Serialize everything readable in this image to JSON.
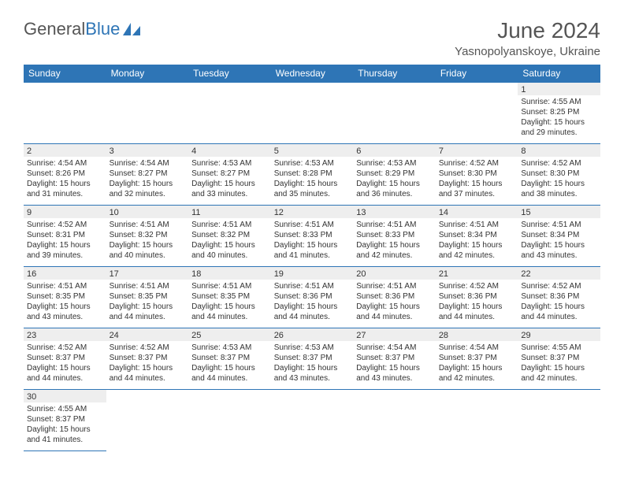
{
  "logo": {
    "text1": "General",
    "text2": "Blue"
  },
  "title": "June 2024",
  "subtitle": "Yasnopolyanskoye, Ukraine",
  "colors": {
    "header_bg": "#2e75b6",
    "header_text": "#ffffff",
    "daynum_bg": "#eeeeee",
    "border": "#2e75b6",
    "page_bg": "#ffffff",
    "body_text": "#333333",
    "title_text": "#555555"
  },
  "days_of_week": [
    "Sunday",
    "Monday",
    "Tuesday",
    "Wednesday",
    "Thursday",
    "Friday",
    "Saturday"
  ],
  "weeks": [
    [
      null,
      null,
      null,
      null,
      null,
      null,
      {
        "n": "1",
        "sr": "Sunrise: 4:55 AM",
        "ss": "Sunset: 8:25 PM",
        "dl1": "Daylight: 15 hours",
        "dl2": "and 29 minutes."
      }
    ],
    [
      {
        "n": "2",
        "sr": "Sunrise: 4:54 AM",
        "ss": "Sunset: 8:26 PM",
        "dl1": "Daylight: 15 hours",
        "dl2": "and 31 minutes."
      },
      {
        "n": "3",
        "sr": "Sunrise: 4:54 AM",
        "ss": "Sunset: 8:27 PM",
        "dl1": "Daylight: 15 hours",
        "dl2": "and 32 minutes."
      },
      {
        "n": "4",
        "sr": "Sunrise: 4:53 AM",
        "ss": "Sunset: 8:27 PM",
        "dl1": "Daylight: 15 hours",
        "dl2": "and 33 minutes."
      },
      {
        "n": "5",
        "sr": "Sunrise: 4:53 AM",
        "ss": "Sunset: 8:28 PM",
        "dl1": "Daylight: 15 hours",
        "dl2": "and 35 minutes."
      },
      {
        "n": "6",
        "sr": "Sunrise: 4:53 AM",
        "ss": "Sunset: 8:29 PM",
        "dl1": "Daylight: 15 hours",
        "dl2": "and 36 minutes."
      },
      {
        "n": "7",
        "sr": "Sunrise: 4:52 AM",
        "ss": "Sunset: 8:30 PM",
        "dl1": "Daylight: 15 hours",
        "dl2": "and 37 minutes."
      },
      {
        "n": "8",
        "sr": "Sunrise: 4:52 AM",
        "ss": "Sunset: 8:30 PM",
        "dl1": "Daylight: 15 hours",
        "dl2": "and 38 minutes."
      }
    ],
    [
      {
        "n": "9",
        "sr": "Sunrise: 4:52 AM",
        "ss": "Sunset: 8:31 PM",
        "dl1": "Daylight: 15 hours",
        "dl2": "and 39 minutes."
      },
      {
        "n": "10",
        "sr": "Sunrise: 4:51 AM",
        "ss": "Sunset: 8:32 PM",
        "dl1": "Daylight: 15 hours",
        "dl2": "and 40 minutes."
      },
      {
        "n": "11",
        "sr": "Sunrise: 4:51 AM",
        "ss": "Sunset: 8:32 PM",
        "dl1": "Daylight: 15 hours",
        "dl2": "and 40 minutes."
      },
      {
        "n": "12",
        "sr": "Sunrise: 4:51 AM",
        "ss": "Sunset: 8:33 PM",
        "dl1": "Daylight: 15 hours",
        "dl2": "and 41 minutes."
      },
      {
        "n": "13",
        "sr": "Sunrise: 4:51 AM",
        "ss": "Sunset: 8:33 PM",
        "dl1": "Daylight: 15 hours",
        "dl2": "and 42 minutes."
      },
      {
        "n": "14",
        "sr": "Sunrise: 4:51 AM",
        "ss": "Sunset: 8:34 PM",
        "dl1": "Daylight: 15 hours",
        "dl2": "and 42 minutes."
      },
      {
        "n": "15",
        "sr": "Sunrise: 4:51 AM",
        "ss": "Sunset: 8:34 PM",
        "dl1": "Daylight: 15 hours",
        "dl2": "and 43 minutes."
      }
    ],
    [
      {
        "n": "16",
        "sr": "Sunrise: 4:51 AM",
        "ss": "Sunset: 8:35 PM",
        "dl1": "Daylight: 15 hours",
        "dl2": "and 43 minutes."
      },
      {
        "n": "17",
        "sr": "Sunrise: 4:51 AM",
        "ss": "Sunset: 8:35 PM",
        "dl1": "Daylight: 15 hours",
        "dl2": "and 44 minutes."
      },
      {
        "n": "18",
        "sr": "Sunrise: 4:51 AM",
        "ss": "Sunset: 8:35 PM",
        "dl1": "Daylight: 15 hours",
        "dl2": "and 44 minutes."
      },
      {
        "n": "19",
        "sr": "Sunrise: 4:51 AM",
        "ss": "Sunset: 8:36 PM",
        "dl1": "Daylight: 15 hours",
        "dl2": "and 44 minutes."
      },
      {
        "n": "20",
        "sr": "Sunrise: 4:51 AM",
        "ss": "Sunset: 8:36 PM",
        "dl1": "Daylight: 15 hours",
        "dl2": "and 44 minutes."
      },
      {
        "n": "21",
        "sr": "Sunrise: 4:52 AM",
        "ss": "Sunset: 8:36 PM",
        "dl1": "Daylight: 15 hours",
        "dl2": "and 44 minutes."
      },
      {
        "n": "22",
        "sr": "Sunrise: 4:52 AM",
        "ss": "Sunset: 8:36 PM",
        "dl1": "Daylight: 15 hours",
        "dl2": "and 44 minutes."
      }
    ],
    [
      {
        "n": "23",
        "sr": "Sunrise: 4:52 AM",
        "ss": "Sunset: 8:37 PM",
        "dl1": "Daylight: 15 hours",
        "dl2": "and 44 minutes."
      },
      {
        "n": "24",
        "sr": "Sunrise: 4:52 AM",
        "ss": "Sunset: 8:37 PM",
        "dl1": "Daylight: 15 hours",
        "dl2": "and 44 minutes."
      },
      {
        "n": "25",
        "sr": "Sunrise: 4:53 AM",
        "ss": "Sunset: 8:37 PM",
        "dl1": "Daylight: 15 hours",
        "dl2": "and 44 minutes."
      },
      {
        "n": "26",
        "sr": "Sunrise: 4:53 AM",
        "ss": "Sunset: 8:37 PM",
        "dl1": "Daylight: 15 hours",
        "dl2": "and 43 minutes."
      },
      {
        "n": "27",
        "sr": "Sunrise: 4:54 AM",
        "ss": "Sunset: 8:37 PM",
        "dl1": "Daylight: 15 hours",
        "dl2": "and 43 minutes."
      },
      {
        "n": "28",
        "sr": "Sunrise: 4:54 AM",
        "ss": "Sunset: 8:37 PM",
        "dl1": "Daylight: 15 hours",
        "dl2": "and 42 minutes."
      },
      {
        "n": "29",
        "sr": "Sunrise: 4:55 AM",
        "ss": "Sunset: 8:37 PM",
        "dl1": "Daylight: 15 hours",
        "dl2": "and 42 minutes."
      }
    ],
    [
      {
        "n": "30",
        "sr": "Sunrise: 4:55 AM",
        "ss": "Sunset: 8:37 PM",
        "dl1": "Daylight: 15 hours",
        "dl2": "and 41 minutes."
      },
      null,
      null,
      null,
      null,
      null,
      null
    ]
  ]
}
